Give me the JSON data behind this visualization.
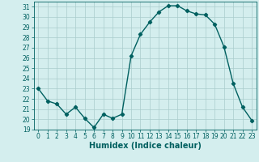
{
  "x": [
    0,
    1,
    2,
    3,
    4,
    5,
    6,
    7,
    8,
    9,
    10,
    11,
    12,
    13,
    14,
    15,
    16,
    17,
    18,
    19,
    20,
    21,
    22,
    23
  ],
  "y": [
    23,
    21.8,
    21.5,
    20.5,
    21.2,
    20.1,
    19.2,
    20.5,
    20.1,
    20.5,
    26.2,
    28.3,
    29.5,
    30.5,
    31.1,
    31.1,
    30.6,
    30.3,
    30.2,
    29.3,
    27.1,
    23.5,
    21.2,
    19.9
  ],
  "line_color": "#006060",
  "marker": "D",
  "markersize": 2.2,
  "linewidth": 1.0,
  "xlabel": "Humidex (Indice chaleur)",
  "xlim": [
    -0.5,
    23.5
  ],
  "ylim": [
    19,
    31.5
  ],
  "yticks": [
    19,
    20,
    21,
    22,
    23,
    24,
    25,
    26,
    27,
    28,
    29,
    30,
    31
  ],
  "xticks": [
    0,
    1,
    2,
    3,
    4,
    5,
    6,
    7,
    8,
    9,
    10,
    11,
    12,
    13,
    14,
    15,
    16,
    17,
    18,
    19,
    20,
    21,
    22,
    23
  ],
  "bg_color": "#d4eeee",
  "grid_color": "#aacccc",
  "tick_label_fontsize": 5.5,
  "xlabel_fontsize": 7.0
}
